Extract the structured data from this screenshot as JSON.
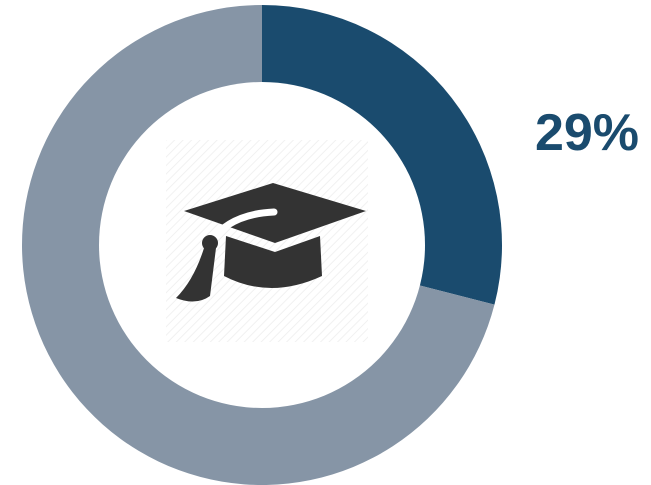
{
  "chart_data": {
    "type": "pie",
    "style": "donut",
    "slices": [
      {
        "value": 29
      },
      {
        "value": 71
      }
    ],
    "data_label": "29%",
    "center_icon": "graduation-cap-icon"
  },
  "colors": {
    "highlight": "#1a4b6e",
    "remainder": "#8695a6",
    "icon": "#333333",
    "center": "#ffffff"
  }
}
